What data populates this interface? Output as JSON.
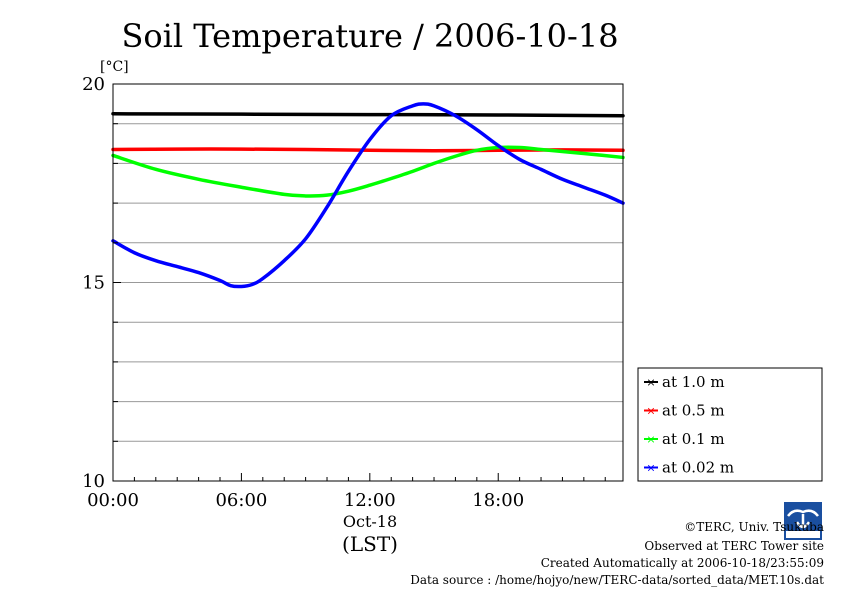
{
  "chart_data": {
    "type": "line",
    "title": "Soil Temperature / 2006-10-18",
    "ylabel": "[°C]",
    "xlabel_date": "Oct-18",
    "xlabel_unit": "(LST)",
    "ylim": [
      10,
      20
    ],
    "xlim_hours": [
      0,
      23.83
    ],
    "y_ticks": [
      10,
      15,
      20
    ],
    "y_tick_labels": [
      "10",
      "15",
      "20"
    ],
    "x_ticks_hours": [
      0,
      6,
      12,
      18
    ],
    "x_tick_labels": [
      "00:00",
      "06:00",
      "12:00",
      "18:00"
    ],
    "grid": true,
    "legend_position": "right",
    "series": [
      {
        "name": "at 1.0 m",
        "color": "#000000",
        "x": [
          0,
          6,
          12,
          18,
          23.83
        ],
        "y": [
          19.25,
          19.24,
          19.23,
          19.22,
          19.2
        ]
      },
      {
        "name": "at 0.5 m",
        "color": "#ff0000",
        "x": [
          0,
          3,
          6,
          9,
          12,
          15,
          18,
          21,
          23.83
        ],
        "y": [
          18.35,
          18.36,
          18.36,
          18.35,
          18.33,
          18.32,
          18.33,
          18.34,
          18.33
        ]
      },
      {
        "name": "at 0.1 m",
        "color": "#00ff00",
        "x": [
          0,
          2,
          4,
          6,
          8,
          9,
          10,
          11,
          12,
          13,
          14,
          15,
          16,
          17,
          18,
          19,
          20,
          21,
          22,
          23.83
        ],
        "y": [
          18.2,
          17.85,
          17.6,
          17.4,
          17.22,
          17.18,
          17.2,
          17.3,
          17.45,
          17.62,
          17.8,
          18.0,
          18.18,
          18.33,
          18.4,
          18.4,
          18.35,
          18.3,
          18.25,
          18.15
        ]
      },
      {
        "name": "at 0.02 m",
        "color": "#0000ff",
        "x": [
          0,
          1,
          2,
          3,
          4,
          5,
          5.5,
          6,
          6.5,
          7,
          8,
          9,
          10,
          11,
          12,
          13,
          14,
          14.5,
          15,
          16,
          17,
          18,
          19,
          20,
          21,
          22,
          23,
          23.83
        ],
        "y": [
          16.05,
          15.75,
          15.55,
          15.4,
          15.25,
          15.05,
          14.92,
          14.9,
          14.95,
          15.1,
          15.55,
          16.1,
          16.9,
          17.8,
          18.6,
          19.2,
          19.45,
          19.5,
          19.45,
          19.2,
          18.85,
          18.45,
          18.1,
          17.85,
          17.6,
          17.4,
          17.2,
          17.0
        ]
      }
    ]
  },
  "credits": {
    "copyright": "©TERC, Univ. Tsukuba",
    "observed": "Observed at TERC Tower site",
    "created": "Created Automatically at 2006-10-18/23:55:09",
    "source": "Data source : /home/hojyo/new/TERC-data/sorted_data/MET.10s.dat"
  },
  "logo": {
    "text": "TERC",
    "color": "#1a4fa0"
  }
}
